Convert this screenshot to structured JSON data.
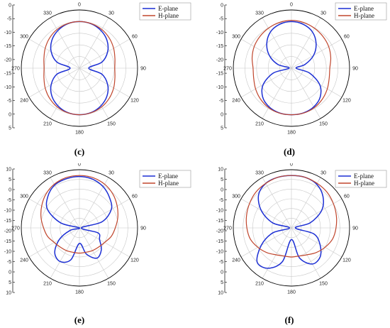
{
  "colors": {
    "e_plane": "#1c2fd4",
    "h_plane": "#c0462d",
    "grid": "#c8c8c8",
    "axis": "#000000"
  },
  "chart_data": [
    {
      "id": "c",
      "type": "polar",
      "label": "(c)",
      "angle_ticks": [
        "0",
        "30",
        "60",
        "90",
        "120",
        "150",
        "180",
        "210",
        "240",
        "270",
        "300",
        "330"
      ],
      "radial_ticks": [
        "0",
        "-5",
        "-10",
        "-15",
        "-20",
        "-15",
        "-10",
        "-5",
        "0",
        "5"
      ],
      "rlim": [
        -20,
        5
      ],
      "series": [
        {
          "name": "E-plane",
          "angles": [
            0,
            15,
            30,
            45,
            60,
            75,
            90,
            105,
            120,
            135,
            150,
            165,
            180,
            195,
            210,
            225,
            240,
            255,
            270,
            285,
            300,
            315,
            330,
            345
          ],
          "values": [
            0,
            -0.3,
            -1.4,
            -3.2,
            -6,
            -10,
            -16,
            -10,
            -6,
            -3.2,
            -1.4,
            -0.3,
            0,
            -0.3,
            -1.4,
            -3.2,
            -6,
            -10,
            -16,
            -10,
            -6,
            -3.2,
            -1.4,
            -0.3
          ]
        },
        {
          "name": "H-plane",
          "angles": [
            0,
            15,
            30,
            45,
            60,
            75,
            90,
            105,
            120,
            135,
            150,
            165,
            180,
            195,
            210,
            225,
            240,
            255,
            270,
            285,
            300,
            315,
            330,
            345
          ],
          "values": [
            0,
            -0.2,
            -0.8,
            -1.8,
            -3,
            -4.2,
            -4.8,
            -4.2,
            -3,
            -1.8,
            -0.8,
            -0.2,
            0,
            -0.2,
            -0.8,
            -1.8,
            -3,
            -4.2,
            -4.8,
            -4.2,
            -3,
            -1.8,
            -0.8,
            -0.2
          ]
        }
      ],
      "legend": [
        "E-plane",
        "H-plane"
      ],
      "legend_position": "top-right"
    },
    {
      "id": "d",
      "type": "polar",
      "label": "(d)",
      "angle_ticks": [
        "0",
        "30",
        "60",
        "90",
        "120",
        "150",
        "180",
        "210",
        "240",
        "270",
        "300",
        "330"
      ],
      "radial_ticks": [
        "0",
        "-5",
        "-10",
        "-15",
        "-20",
        "-15",
        "-10",
        "-5",
        "0",
        "5"
      ],
      "rlim": [
        -20,
        5
      ],
      "series": [
        {
          "name": "E-plane",
          "angles": [
            0,
            15,
            30,
            45,
            60,
            75,
            90,
            105,
            120,
            135,
            150,
            165,
            180,
            195,
            210,
            225,
            240,
            255,
            270,
            285,
            300,
            315,
            330,
            345
          ],
          "values": [
            0,
            -0.5,
            -2,
            -5,
            -9,
            -14,
            -18,
            -12,
            -6,
            -2.5,
            -0.8,
            -0.1,
            0,
            -0.1,
            -0.8,
            -2.5,
            -6,
            -12,
            -19,
            -14,
            -9,
            -5,
            -2,
            -0.5
          ]
        },
        {
          "name": "H-plane",
          "angles": [
            0,
            15,
            30,
            45,
            60,
            75,
            90,
            105,
            120,
            135,
            150,
            165,
            180,
            195,
            210,
            225,
            240,
            255,
            270,
            285,
            300,
            315,
            330,
            345
          ],
          "values": [
            0.5,
            0.3,
            -0.2,
            -0.8,
            -1.5,
            -2.5,
            -3.5,
            -3.2,
            -2.2,
            -1.2,
            -0.4,
            0,
            0,
            0,
            -0.4,
            -1.2,
            -2.2,
            -3.2,
            -3.5,
            -2.5,
            -1.5,
            -0.8,
            -0.2,
            0.3
          ]
        }
      ],
      "legend": [
        "E-plane",
        "H-plane"
      ],
      "legend_position": "top-right"
    },
    {
      "id": "e",
      "type": "polar",
      "label": "(e)",
      "angle_ticks": [
        "0",
        "30",
        "60",
        "90",
        "120",
        "150",
        "180",
        "210",
        "240",
        "270",
        "300",
        "330"
      ],
      "radial_ticks": [
        "10",
        "5",
        "0",
        "-5",
        "-10",
        "-15",
        "-20",
        "-15",
        "-10",
        "-5",
        "0",
        "5",
        "10"
      ],
      "rlim": [
        -20,
        10
      ],
      "series": [
        {
          "name": "E-plane",
          "angles": [
            0,
            15,
            30,
            45,
            60,
            75,
            90,
            105,
            120,
            135,
            150,
            165,
            180,
            195,
            210,
            225,
            240,
            255,
            270,
            285,
            300,
            315,
            330,
            345
          ],
          "values": [
            6.5,
            6,
            4.5,
            2,
            -1,
            -8,
            -19,
            -10,
            -8,
            -4,
            -2,
            -6,
            -12,
            -3,
            0,
            -2,
            -8,
            -15,
            -20,
            -10,
            -1,
            3,
            5.5,
            6.2
          ]
        },
        {
          "name": "H-plane",
          "angles": [
            0,
            15,
            30,
            45,
            60,
            75,
            90,
            105,
            120,
            135,
            150,
            165,
            180,
            195,
            210,
            225,
            240,
            255,
            270,
            285,
            300,
            315,
            330,
            345
          ],
          "values": [
            7,
            6.8,
            6,
            4.5,
            2.5,
            0.5,
            -1.5,
            -3,
            -5,
            -6,
            -6.5,
            -7,
            -7,
            -7,
            -6.5,
            -6,
            -5,
            -3,
            -1.5,
            0.5,
            2.5,
            4.5,
            6,
            6.8
          ]
        }
      ],
      "legend": [
        "E-plane",
        "H-plane"
      ],
      "legend_position": "top-right"
    },
    {
      "id": "f",
      "type": "polar",
      "label": "(f)",
      "angle_ticks": [
        "0",
        "30",
        "60",
        "90",
        "120",
        "150",
        "180",
        "210",
        "240",
        "270",
        "300",
        "330"
      ],
      "radial_ticks": [
        "10",
        "5",
        "0",
        "-5",
        "-10",
        "-15",
        "-20",
        "-15",
        "-10",
        "-5",
        "0",
        "5",
        "10"
      ],
      "rlim": [
        -20,
        10
      ],
      "series": [
        {
          "name": "E-plane",
          "angles": [
            0,
            15,
            30,
            45,
            60,
            75,
            90,
            105,
            120,
            135,
            150,
            165,
            180,
            195,
            210,
            225,
            240,
            255,
            270,
            285,
            300,
            315,
            330,
            345
          ],
          "values": [
            7,
            7,
            6,
            3,
            -2,
            -10,
            -18,
            -8,
            -3,
            1,
            1.5,
            -4,
            -14,
            -2,
            4,
            5,
            -2,
            -10,
            -19,
            -10,
            -2,
            4,
            6.5,
            7
          ]
        },
        {
          "name": "H-plane",
          "angles": [
            0,
            15,
            30,
            45,
            60,
            75,
            90,
            105,
            120,
            135,
            150,
            165,
            180,
            195,
            210,
            225,
            240,
            255,
            270,
            285,
            300,
            315,
            330,
            345
          ],
          "values": [
            7,
            7,
            6.5,
            6,
            5,
            4,
            3,
            2,
            0,
            -2,
            -4,
            -5,
            -5,
            -5,
            -4,
            -2,
            0,
            2,
            3,
            4,
            5,
            6,
            6.5,
            7
          ]
        }
      ],
      "legend": [
        "E-plane",
        "H-plane"
      ],
      "legend_position": "top-right"
    }
  ]
}
